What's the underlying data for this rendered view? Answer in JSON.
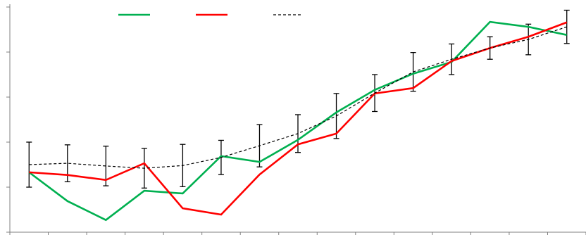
{
  "chart_data": {
    "type": "line",
    "categories": [
      null,
      null,
      null,
      null,
      null,
      null,
      null,
      null,
      null,
      null,
      null,
      null,
      null,
      null,
      null
    ],
    "series": [
      {
        "color": "#00b050",
        "values": [
          1.33,
          0.69,
          0.27,
          0.92,
          0.86,
          1.69,
          1.56,
          2.05,
          2.66,
          3.16,
          3.52,
          3.78,
          4.67,
          4.56,
          4.38
        ]
      },
      {
        "color": "#ff0000",
        "values": [
          1.33,
          1.27,
          1.16,
          1.53,
          0.53,
          0.39,
          1.28,
          1.95,
          2.19,
          3.08,
          3.2,
          3.8,
          4.09,
          4.34,
          4.66
        ]
      },
      {
        "color": "#000000",
        "dashed": true,
        "values": [
          1.5,
          1.53,
          1.47,
          1.42,
          1.48,
          1.66,
          1.92,
          2.19,
          2.58,
          3.09,
          3.56,
          3.84,
          4.09,
          4.28,
          4.56
        ],
        "error": [
          0.5,
          0.41,
          0.44,
          0.44,
          0.47,
          0.38,
          0.47,
          0.42,
          0.5,
          0.41,
          0.43,
          0.34,
          0.25,
          0.34,
          0.37
        ]
      }
    ],
    "ylim": [
      0,
      5
    ],
    "yticks": [
      0,
      1,
      2,
      3,
      4,
      5
    ],
    "legend": "top"
  }
}
